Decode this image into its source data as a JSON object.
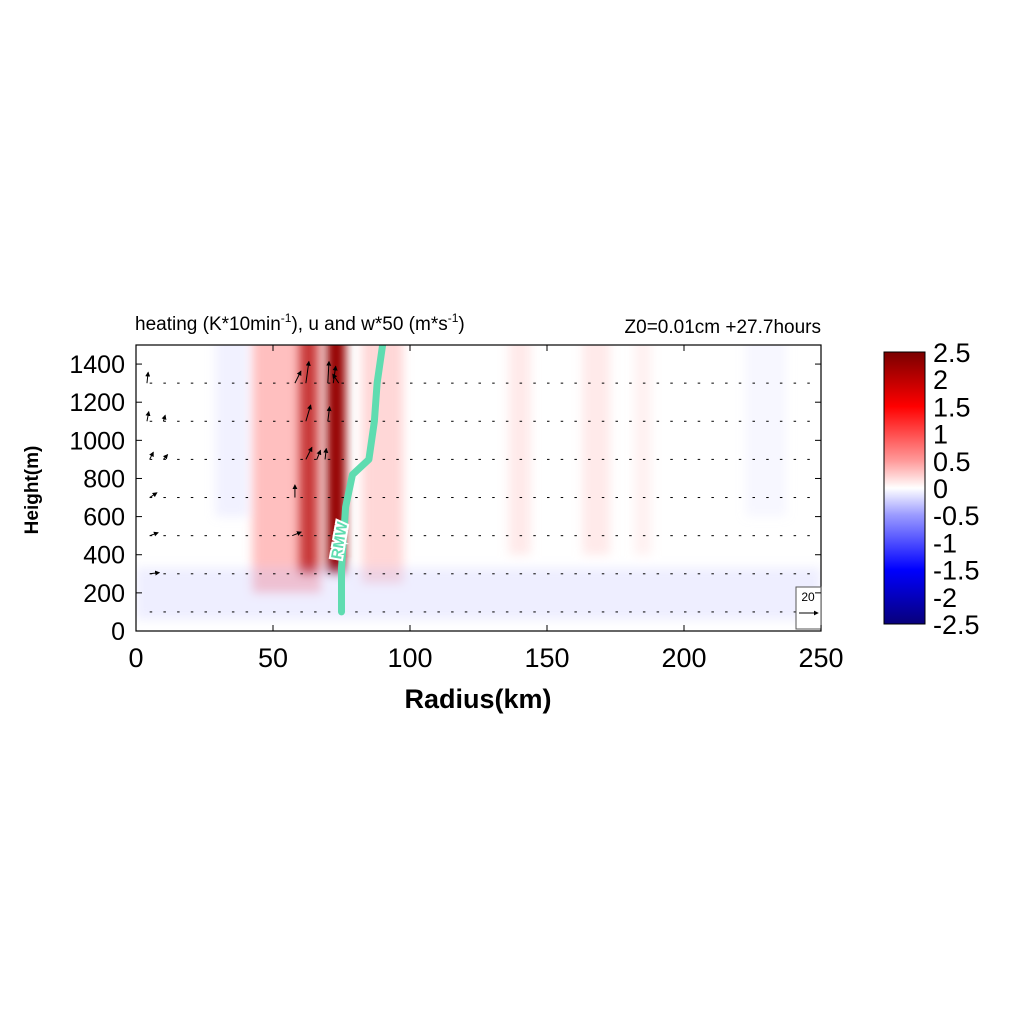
{
  "chart_data": {
    "type": "heatmap",
    "title_left": "heating (K*10min",
    "title_left_sup1": "-1",
    "title_left_mid": "), u and w*50 (m*s",
    "title_left_sup2": "-1",
    "title_left_end": ")",
    "title_right": "Z0=0.01cm  +27.7hours",
    "xlabel": "Radius(km)",
    "ylabel": "Height(m)",
    "xlim": [
      0,
      250
    ],
    "ylim": [
      0,
      1500
    ],
    "x_ticks": [
      "0",
      "50",
      "100",
      "150",
      "200",
      "250"
    ],
    "y_ticks": [
      "0",
      "200",
      "400",
      "600",
      "800",
      "1000",
      "1200",
      "1400"
    ],
    "colorbar": {
      "range": [
        -2.5,
        2.5
      ],
      "ticks": [
        "2.5",
        "2",
        "1.5",
        "1",
        "0.5",
        "0",
        "-0.5",
        "-1",
        "-1.5",
        "-2",
        "-2.5"
      ],
      "colors": [
        "#08007a",
        "#0000ff",
        "#8a8aff",
        "#ffffff",
        "#ff8a8a",
        "#ff0000",
        "#7a0000"
      ]
    },
    "heating_bands": [
      {
        "r_center": 63,
        "r_width": 7,
        "z_top": 1500,
        "z_bottom": 300,
        "value": 2.3
      },
      {
        "r_center": 73,
        "r_width": 7,
        "z_top": 1500,
        "z_bottom": 300,
        "value": 2.3
      },
      {
        "r_center": 55,
        "r_width": 25,
        "z_top": 1500,
        "z_bottom": 200,
        "value": 0.8
      },
      {
        "r_center": 90,
        "r_width": 15,
        "z_top": 1500,
        "z_bottom": 250,
        "value": 0.6
      },
      {
        "r_center": 140,
        "r_width": 8,
        "z_top": 1500,
        "z_bottom": 400,
        "value": 0.4
      },
      {
        "r_center": 168,
        "r_width": 10,
        "z_top": 1500,
        "z_bottom": 400,
        "value": 0.4
      },
      {
        "r_center": 185,
        "r_width": 6,
        "z_top": 1500,
        "z_bottom": 400,
        "value": 0.3
      },
      {
        "r_center": 35,
        "r_width": 12,
        "z_top": 1500,
        "z_bottom": 600,
        "value": -0.3
      },
      {
        "r_center": 230,
        "r_width": 15,
        "z_top": 1500,
        "z_bottom": 600,
        "value": -0.2
      },
      {
        "r_center": 125,
        "r_width": 250,
        "z_top": 280,
        "z_bottom": 60,
        "value": -0.35
      }
    ],
    "rmw_line": {
      "label": "RMW",
      "color": "#5fdcb0",
      "points": [
        [
          75,
          100
        ],
        [
          75,
          330
        ],
        [
          76.5,
          650
        ],
        [
          79,
          820
        ],
        [
          85,
          900
        ],
        [
          87,
          1100
        ],
        [
          88,
          1300
        ],
        [
          90,
          1500
        ]
      ]
    },
    "vector_levels": [
      100,
      300,
      500,
      700,
      900,
      1100,
      1300
    ],
    "vectors": [
      {
        "r": 4,
        "z": 1300,
        "u": 0.2,
        "w": 1.8
      },
      {
        "r": 4,
        "z": 1100,
        "u": 0.3,
        "w": 1.6
      },
      {
        "r": 5,
        "z": 900,
        "u": 0.6,
        "w": 1.2
      },
      {
        "r": 5,
        "z": 700,
        "u": 1.2,
        "w": 0.8
      },
      {
        "r": 5,
        "z": 500,
        "u": 1.4,
        "w": 0.5
      },
      {
        "r": 5,
        "z": 300,
        "u": 1.6,
        "w": 0.2
      },
      {
        "r": 10,
        "z": 1100,
        "u": 0.3,
        "w": 1.0
      },
      {
        "r": 10,
        "z": 900,
        "u": 0.7,
        "w": 0.8
      },
      {
        "r": 58,
        "z": 1300,
        "u": 1.0,
        "w": 2.0
      },
      {
        "r": 62,
        "z": 1300,
        "u": 0.5,
        "w": 3.6
      },
      {
        "r": 70,
        "z": 1300,
        "u": 0.2,
        "w": 3.6
      },
      {
        "r": 72,
        "z": 1300,
        "u": 0.4,
        "w": 2.8
      },
      {
        "r": 74,
        "z": 1300,
        "u": -1.0,
        "w": 1.5
      },
      {
        "r": 62,
        "z": 1100,
        "u": 0.8,
        "w": 2.7
      },
      {
        "r": 70,
        "z": 1100,
        "u": 0.3,
        "w": 2.4
      },
      {
        "r": 62,
        "z": 900,
        "u": 1.0,
        "w": 2.0
      },
      {
        "r": 66,
        "z": 900,
        "u": 0.6,
        "w": 1.5
      },
      {
        "r": 69,
        "z": 900,
        "u": 0.2,
        "w": 1.8
      },
      {
        "r": 58,
        "z": 700,
        "u": 0.0,
        "w": 2.1
      },
      {
        "r": 57,
        "z": 500,
        "u": 1.5,
        "w": 0.6
      }
    ],
    "reference_vector": {
      "label": "20"
    }
  }
}
